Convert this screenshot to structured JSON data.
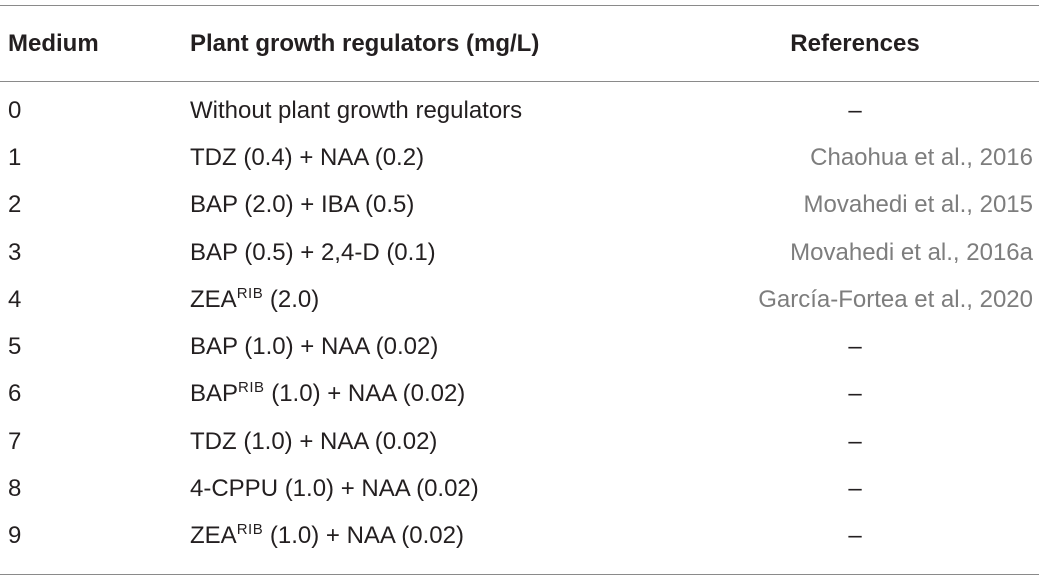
{
  "table": {
    "headers": [
      "Medium",
      "Plant growth regulators (mg/L)",
      "References"
    ],
    "rows": [
      {
        "medium": "0",
        "regs": "Without plant growth regulators",
        "ref": "–"
      },
      {
        "medium": "1",
        "regs": "TDZ (0.4) + NAA (0.2)",
        "ref": "Chaohua et al., 2016"
      },
      {
        "medium": "2",
        "regs": "BAP (2.0) + IBA (0.5)",
        "ref": "Movahedi et al., 2015"
      },
      {
        "medium": "3",
        "regs": "BAP (0.5) + 2,4-D (0.1)",
        "ref": "Movahedi et al., 2016a"
      },
      {
        "medium": "4",
        "regs_base": "ZEA",
        "regs_sup": "RIB",
        "regs_rest": " (2.0)",
        "ref": "García-Fortea et al., 2020"
      },
      {
        "medium": "5",
        "regs": "BAP (1.0) + NAA (0.02)",
        "ref": "–"
      },
      {
        "medium": "6",
        "regs_base": "BAP",
        "regs_sup": "RIB",
        "regs_rest": " (1.0) + NAA (0.02)",
        "ref": "–"
      },
      {
        "medium": "7",
        "regs": "TDZ (1.0) + NAA (0.02)",
        "ref": "–"
      },
      {
        "medium": "8",
        "regs": "4-CPPU (1.0) + NAA (0.02)",
        "ref": "–"
      },
      {
        "medium": "9",
        "regs_base": "ZEA",
        "regs_sup": "RIB",
        "regs_rest": " (1.0) + NAA (0.02)",
        "ref": "–"
      }
    ]
  },
  "colors": {
    "text": "#231f20",
    "reference_link": "#7d7d7d",
    "rule": "#8a8a8a"
  }
}
